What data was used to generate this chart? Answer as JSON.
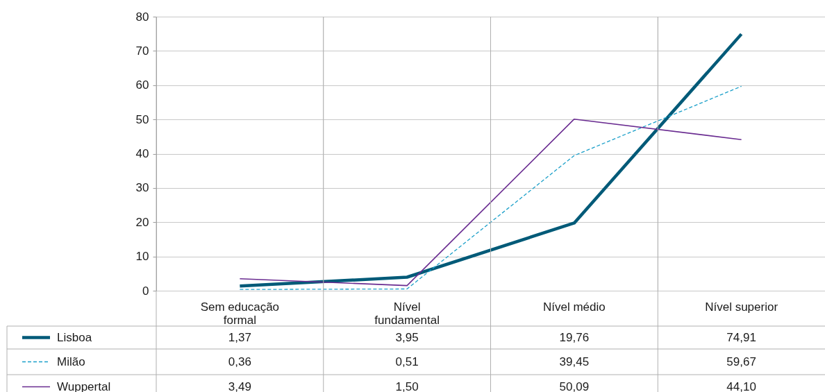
{
  "chart_data": {
    "type": "line",
    "categories": [
      "Sem educação formal",
      "Nível fundamental",
      "Nível médio",
      "Nível superior"
    ],
    "series": [
      {
        "name": "Lisboa",
        "color": "#005a78",
        "line_style": "solid",
        "values": [
          1.37,
          3.95,
          19.76,
          74.91
        ],
        "value_labels": [
          "1,37",
          "3,95",
          "19,76",
          "74,91"
        ]
      },
      {
        "name": "Milão",
        "color": "#1a9fc9",
        "line_style": "dashed",
        "values": [
          0.36,
          0.51,
          39.45,
          59.67
        ],
        "value_labels": [
          "0,36",
          "0,51",
          "39,45",
          "59,67"
        ]
      },
      {
        "name": "Wuppertal",
        "color": "#6a2c91",
        "line_style": "solid",
        "values": [
          3.49,
          1.5,
          50.09,
          44.1
        ],
        "value_labels": [
          "3,49",
          "1,50",
          "50,09",
          "44,10"
        ]
      }
    ],
    "ylim": [
      0,
      80
    ],
    "yticks": [
      0,
      10,
      20,
      30,
      40,
      50,
      60,
      70,
      80
    ],
    "grid": true,
    "legend": "bottom left"
  }
}
